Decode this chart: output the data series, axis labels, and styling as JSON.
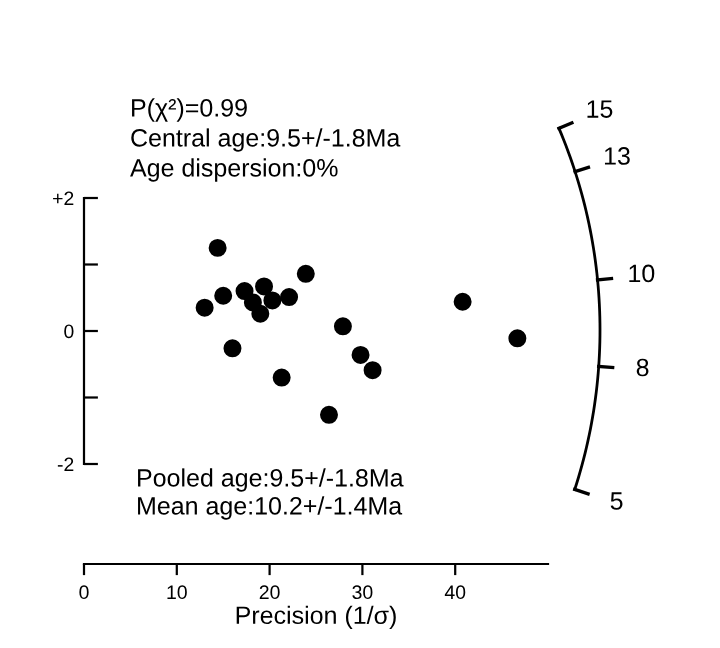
{
  "chart_data": {
    "type": "scatter",
    "xlabel": "Precision (1/σ)",
    "x": [
      13.0,
      14.4,
      15.0,
      16.0,
      17.3,
      18.2,
      19.0,
      19.4,
      20.3,
      21.3,
      22.1,
      23.9,
      26.4,
      27.9,
      29.8,
      31.1,
      40.8,
      46.7
    ],
    "series": [
      {
        "color": "#000000",
        "values": [
          0.35,
          1.25,
          0.53,
          -0.26,
          0.6,
          0.43,
          0.26,
          0.67,
          0.46,
          -0.7,
          0.51,
          0.86,
          -1.26,
          0.07,
          -0.36,
          -0.59,
          0.44,
          -0.11
        ]
      }
    ],
    "marker": "circle",
    "grid": false,
    "xlim": [
      0,
      50
    ],
    "xticks": [
      0,
      10,
      20,
      30,
      40
    ],
    "ylim": [
      -2,
      2
    ],
    "yticks": [
      {
        "value": -2,
        "label": "-2"
      },
      {
        "value": -1,
        "label": null
      },
      0,
      {
        "value": 1,
        "label": null
      },
      {
        "value": 2,
        "label": "+2"
      }
    ],
    "annotations": [
      "P(χ²)=0.99",
      "Central age:9.5+/-1.8Ma",
      "Age dispersion:0%",
      "Pooled age:9.5+/-1.8Ma",
      "Mean age:10.2+/-1.4Ma",
      "15",
      "13",
      "10",
      "8",
      "5"
    ]
  }
}
